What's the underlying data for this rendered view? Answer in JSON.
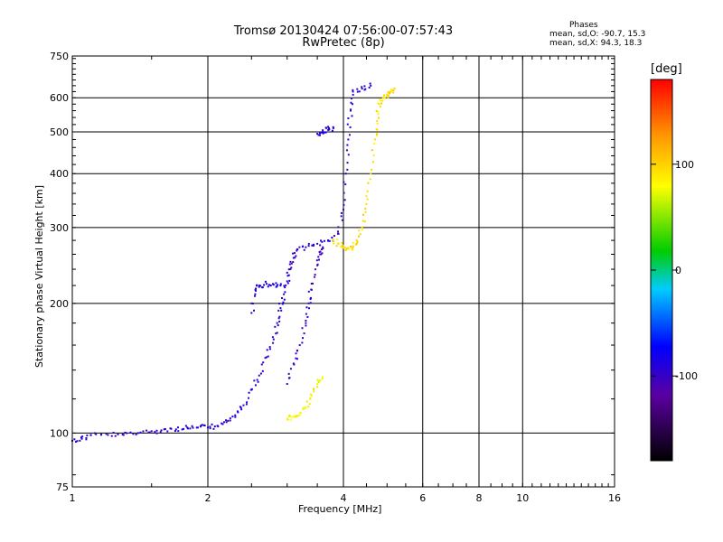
{
  "title": "Tromsø 20130424 07:56:00-07:57:43",
  "subtitle": "RwPretec (8p)",
  "stats": {
    "heading": "Phases",
    "o_mode": "mean, sd,O: -90.7, 15.3",
    "x_mode": "mean, sd,X:  94.3, 18.3"
  },
  "colorbar": {
    "unit": "[deg]",
    "ticks": [
      "100",
      "0",
      "-100"
    ],
    "tick_values": [
      100,
      0,
      -100
    ],
    "range": [
      -180,
      180
    ]
  },
  "chart_data": {
    "type": "scatter",
    "xlabel": "Frequency [MHz]",
    "ylabel": "Stationary phase Virtual Height [km]",
    "x_scale": "log",
    "y_scale": "log",
    "xlim": [
      1,
      16
    ],
    "ylim": [
      75,
      750
    ],
    "x_ticks": [
      1,
      2,
      4,
      6,
      8,
      10,
      16
    ],
    "x_tick_labels": [
      "1",
      "2",
      "4",
      "6",
      "8",
      "10",
      "16"
    ],
    "y_ticks": [
      75,
      100,
      200,
      300,
      400,
      500,
      600,
      750
    ],
    "y_tick_labels": [
      "75",
      "100",
      "200",
      "300",
      "400",
      "500",
      "600",
      "750"
    ],
    "grid": true,
    "color_encoding": "phase [deg]",
    "traces": [
      {
        "mode": "O",
        "phase": -95,
        "points": [
          [
            1.0,
            96
          ],
          [
            1.05,
            97
          ],
          [
            1.1,
            99
          ],
          [
            1.2,
            99
          ],
          [
            1.3,
            99
          ],
          [
            1.4,
            100
          ],
          [
            1.5,
            101
          ],
          [
            1.6,
            102
          ],
          [
            1.7,
            102
          ],
          [
            1.8,
            103
          ],
          [
            1.9,
            103
          ],
          [
            2.0,
            103
          ],
          [
            2.1,
            104
          ],
          [
            2.2,
            106
          ],
          [
            2.3,
            110
          ],
          [
            2.4,
            116
          ],
          [
            2.5,
            126
          ],
          [
            2.6,
            136
          ],
          [
            2.7,
            150
          ],
          [
            2.8,
            165
          ],
          [
            2.85,
            180
          ],
          [
            2.9,
            195
          ],
          [
            2.95,
            210
          ],
          [
            3.0,
            225
          ],
          [
            3.05,
            240
          ],
          [
            3.1,
            255
          ],
          [
            3.15,
            265
          ],
          [
            3.3,
            270
          ],
          [
            3.5,
            275
          ],
          [
            3.7,
            280
          ],
          [
            3.9,
            290
          ],
          [
            4.0,
            330
          ],
          [
            4.05,
            400
          ],
          [
            4.1,
            480
          ],
          [
            4.15,
            560
          ],
          [
            4.2,
            620
          ],
          [
            4.4,
            630
          ],
          [
            4.6,
            640
          ]
        ]
      },
      {
        "mode": "O",
        "phase": -90,
        "points": [
          [
            2.5,
            190
          ],
          [
            2.55,
            215
          ],
          [
            2.6,
            220
          ],
          [
            2.7,
            222
          ],
          [
            2.8,
            221
          ],
          [
            2.9,
            220
          ]
        ]
      },
      {
        "mode": "O",
        "phase": -100,
        "points": [
          [
            3.0,
            130
          ],
          [
            3.1,
            145
          ],
          [
            3.2,
            160
          ],
          [
            3.3,
            180
          ],
          [
            3.35,
            200
          ],
          [
            3.4,
            215
          ],
          [
            3.5,
            245
          ],
          [
            3.55,
            260
          ],
          [
            3.6,
            270
          ]
        ]
      },
      {
        "mode": "O",
        "phase": -85,
        "points": [
          [
            3.5,
            495
          ],
          [
            3.6,
            500
          ],
          [
            3.7,
            505
          ],
          [
            3.8,
            510
          ]
        ]
      },
      {
        "mode": "X",
        "phase": 80,
        "points": [
          [
            3.0,
            108
          ],
          [
            3.1,
            109
          ],
          [
            3.2,
            110
          ],
          [
            3.3,
            115
          ],
          [
            3.4,
            122
          ],
          [
            3.5,
            130
          ],
          [
            3.6,
            135
          ]
        ]
      },
      {
        "mode": "X",
        "phase": 95,
        "points": [
          [
            3.8,
            280
          ],
          [
            3.9,
            275
          ],
          [
            4.0,
            270
          ],
          [
            4.1,
            268
          ],
          [
            4.2,
            270
          ],
          [
            4.3,
            278
          ],
          [
            4.4,
            300
          ],
          [
            4.5,
            340
          ],
          [
            4.6,
            400
          ],
          [
            4.7,
            480
          ],
          [
            4.75,
            530
          ],
          [
            4.8,
            580
          ],
          [
            4.9,
            600
          ],
          [
            5.0,
            610
          ],
          [
            5.1,
            620
          ],
          [
            5.2,
            630
          ]
        ]
      }
    ]
  }
}
